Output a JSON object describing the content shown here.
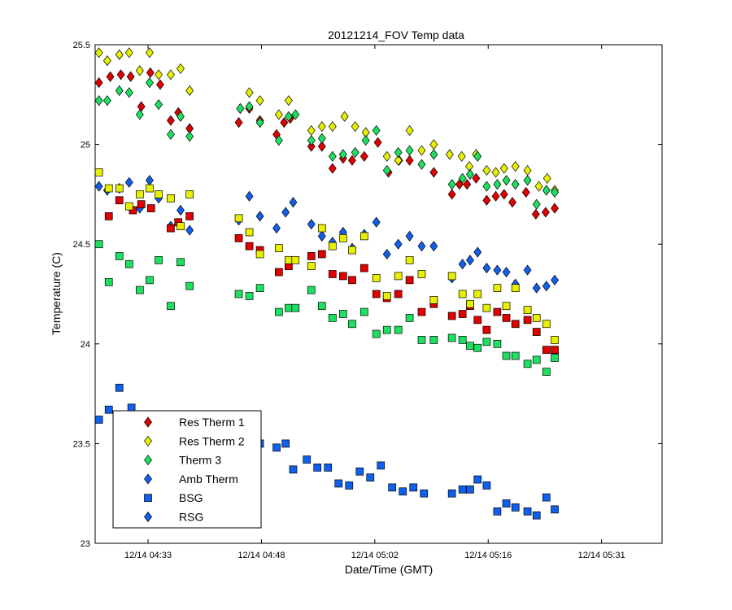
{
  "chart_data": {
    "type": "scatter",
    "title": "20121214_FOV Temp data",
    "xlabel": "Date/Time (GMT)",
    "ylabel": "Temperature (C)",
    "x_unit": "minutes after 12/14 04:25 GMT",
    "xlim": [
      0,
      75
    ],
    "ylim": [
      23,
      25.5
    ],
    "x_ticks": [
      {
        "value": 7,
        "label": "12/14 04:33"
      },
      {
        "value": 22,
        "label": "12/14 04:48"
      },
      {
        "value": 37,
        "label": "12/14 05:02"
      },
      {
        "value": 52,
        "label": "12/14 05:16"
      },
      {
        "value": 67,
        "label": "12/14 05:31"
      }
    ],
    "y_ticks": [
      {
        "value": 23,
        "label": "23"
      },
      {
        "value": 23.5,
        "label": "23.5"
      },
      {
        "value": 24,
        "label": "24"
      },
      {
        "value": 24.5,
        "label": "24.5"
      },
      {
        "value": 25,
        "label": "25"
      },
      {
        "value": 25.5,
        "label": "25.5"
      }
    ],
    "grid": false,
    "legend_position": "bottom-left",
    "legend": [
      {
        "name": "Res Therm 1",
        "marker": "diamond",
        "color": "#e00000"
      },
      {
        "name": "Res Therm 2",
        "marker": "diamond",
        "color": "#e6f000"
      },
      {
        "name": "Therm 3",
        "marker": "diamond",
        "color": "#1ee060"
      },
      {
        "name": "Amb Therm",
        "marker": "diamond",
        "color": "#1060ee"
      },
      {
        "name": "BSG",
        "marker": "square",
        "color": "#1060ee"
      },
      {
        "name": "RSG",
        "marker": "diamond",
        "color": "#1060ee"
      }
    ],
    "series": [
      {
        "name": "Res Therm 1 (upper)",
        "marker": "diamond",
        "color": "#e00000",
        "x": [
          0.5,
          2,
          3.4,
          4.7,
          6.1,
          7.3,
          8.6,
          10,
          11,
          12.5,
          19,
          20.4,
          21.8,
          24,
          25,
          25.8,
          28.6,
          30,
          31.4,
          32.8,
          34,
          35.6,
          37.4,
          38.8,
          40.2,
          41.6,
          44.8,
          47.2,
          48.2,
          49.2,
          50.4,
          51.8,
          53,
          54.1,
          55.2,
          57,
          58.3,
          59.6,
          60.8
        ],
        "y": [
          25.31,
          25.34,
          25.35,
          25.34,
          25.19,
          25.36,
          25.3,
          25.12,
          25.16,
          25.08,
          25.11,
          25.18,
          25.12,
          25.05,
          25.11,
          25.13,
          24.99,
          24.99,
          24.88,
          24.93,
          24.92,
          24.94,
          25.01,
          24.86,
          24.92,
          24.92,
          24.86,
          24.75,
          24.8,
          24.8,
          24.83,
          24.72,
          24.74,
          24.75,
          24.71,
          24.76,
          24.65,
          24.66,
          24.68
        ]
      },
      {
        "name": "Res Therm 2 (upper)",
        "marker": "diamond",
        "color": "#e6f000",
        "x": [
          0.5,
          1.6,
          3.2,
          4.5,
          5.9,
          7.2,
          8.4,
          10,
          11.3,
          12.5,
          19.2,
          20.4,
          21.8,
          24.3,
          25.6,
          28.6,
          30,
          31.4,
          33,
          34.4,
          35.8,
          38.6,
          40.1,
          41.6,
          43.2,
          44.8,
          46.9,
          48.5,
          49.5,
          50.4,
          51.8,
          53,
          54.1,
          55.6,
          57.2,
          58.7,
          59.8,
          60.8
        ],
        "y": [
          25.46,
          25.42,
          25.45,
          25.46,
          25.37,
          25.46,
          25.35,
          25.35,
          25.38,
          25.27,
          25.18,
          25.26,
          25.22,
          25.15,
          25.22,
          25.07,
          25.09,
          25.09,
          25.14,
          25.09,
          25.06,
          24.94,
          24.92,
          25.07,
          24.97,
          25.0,
          24.95,
          24.94,
          24.89,
          24.95,
          24.87,
          24.86,
          24.88,
          24.89,
          24.87,
          24.79,
          24.83,
          24.77
        ]
      },
      {
        "name": "Therm 3 (upper)",
        "marker": "diamond",
        "color": "#1ee060",
        "x": [
          0.5,
          1.6,
          3.2,
          4.5,
          5.9,
          7.2,
          8.4,
          10,
          11.3,
          12.5,
          19.2,
          20.4,
          21.8,
          24.3,
          25.6,
          26.5,
          28.6,
          30,
          31.4,
          32.8,
          34.4,
          35.8,
          37.2,
          38.6,
          40.1,
          41.6,
          43.2,
          44.8,
          47.2,
          48.6,
          49.6,
          50.6,
          51.8,
          53.2,
          54.4,
          55.6,
          57.2,
          58.4,
          59.7,
          60.8
        ],
        "y": [
          25.22,
          25.22,
          25.27,
          25.26,
          25.15,
          25.31,
          25.2,
          25.05,
          25.14,
          25.04,
          25.18,
          25.19,
          25.11,
          25.02,
          25.14,
          25.15,
          25.02,
          25.03,
          24.94,
          24.95,
          24.96,
          25.02,
          25.07,
          24.87,
          24.96,
          24.97,
          24.9,
          24.95,
          24.8,
          24.83,
          24.85,
          24.94,
          24.79,
          24.8,
          24.82,
          24.8,
          24.82,
          24.7,
          24.77,
          24.76
        ]
      },
      {
        "name": "Amb Therm (upper)",
        "marker": "diamond",
        "color": "#1060ee",
        "x": [
          0.5,
          1.6,
          3.2,
          4.5,
          5.9,
          7.2,
          8.4,
          10,
          11.3,
          12.5,
          19,
          20.4,
          21.8,
          24,
          25.2,
          26.2,
          28.6,
          30,
          31.4,
          32.8,
          34,
          35.6,
          37.2,
          38.6,
          40.1,
          41.6,
          43.2,
          44.8,
          47.2,
          48.6,
          49.6,
          50.6,
          51.8,
          53.2,
          54.4,
          55.6,
          57.2,
          58.4,
          59.7,
          60.8
        ],
        "y": [
          24.79,
          24.77,
          24.78,
          24.81,
          24.68,
          24.82,
          24.73,
          24.59,
          24.67,
          24.57,
          24.62,
          24.74,
          24.64,
          24.58,
          24.66,
          24.71,
          24.6,
          24.54,
          24.51,
          24.56,
          24.48,
          24.55,
          24.61,
          24.45,
          24.5,
          24.54,
          24.49,
          24.49,
          24.33,
          24.4,
          24.42,
          24.46,
          24.38,
          24.37,
          24.36,
          24.3,
          24.37,
          24.28,
          24.29,
          24.32
        ]
      },
      {
        "name": "Res Therm 1 (lower)",
        "marker": "square",
        "color": "#e00000",
        "x": [
          1.8,
          3.2,
          5,
          6.1,
          7.4,
          10,
          11,
          12.5,
          19,
          20.4,
          21.8,
          24.3,
          25.6,
          28.6,
          30,
          31.4,
          32.8,
          34,
          35.6,
          37.2,
          38.6,
          40.1,
          41.6,
          43.2,
          44.8,
          47.2,
          48.6,
          49.6,
          50.6,
          51.8,
          53.2,
          54.4,
          55.6,
          57.2,
          58.4,
          59.7,
          60.8
        ],
        "y": [
          24.64,
          24.72,
          24.67,
          24.7,
          24.68,
          24.58,
          24.61,
          24.64,
          24.53,
          24.49,
          24.47,
          24.36,
          24.39,
          24.44,
          24.45,
          24.35,
          24.34,
          24.32,
          24.38,
          24.25,
          24.23,
          24.25,
          24.32,
          24.16,
          24.2,
          24.14,
          24.15,
          24.19,
          24.12,
          24.07,
          24.16,
          24.13,
          24.1,
          24.12,
          24.06,
          23.97,
          23.97
        ]
      },
      {
        "name": "Res Therm 2 (lower)",
        "marker": "square",
        "color": "#e6f000",
        "x": [
          0.5,
          1.8,
          3.2,
          4.5,
          5.9,
          7.2,
          8.4,
          10,
          11.3,
          12.5,
          19,
          20.4,
          21.8,
          24.3,
          25.6,
          26.5,
          28.6,
          30,
          31.4,
          32.8,
          34,
          35.6,
          37.2,
          38.6,
          40.1,
          41.6,
          43.2,
          44.8,
          47.2,
          48.6,
          49.6,
          50.6,
          51.8,
          53.2,
          54.4,
          55.6,
          57.2,
          58.4,
          59.7,
          60.8
        ],
        "y": [
          24.86,
          24.78,
          24.78,
          24.69,
          24.75,
          24.78,
          24.75,
          24.73,
          24.59,
          24.75,
          24.63,
          24.56,
          24.45,
          24.48,
          24.42,
          24.42,
          24.39,
          24.58,
          24.49,
          24.53,
          24.47,
          24.54,
          24.33,
          24.24,
          24.34,
          24.42,
          24.35,
          24.22,
          24.34,
          24.25,
          24.2,
          24.25,
          24.18,
          24.28,
          24.19,
          24.28,
          24.17,
          24.13,
          24.1,
          24.02
        ]
      },
      {
        "name": "Therm 3 (lower)",
        "marker": "square",
        "color": "#1ee060",
        "x": [
          0.5,
          1.8,
          3.2,
          4.5,
          5.9,
          7.2,
          8.4,
          10,
          11.3,
          12.5,
          19,
          20.4,
          21.8,
          24.3,
          25.6,
          26.5,
          28.6,
          30,
          31.4,
          32.8,
          34,
          35.6,
          37.2,
          38.6,
          40.1,
          41.6,
          43.2,
          44.8,
          47.2,
          48.6,
          49.6,
          50.6,
          51.8,
          53.2,
          54.4,
          55.6,
          57.2,
          58.4,
          59.7,
          60.8
        ],
        "y": [
          24.5,
          24.31,
          24.44,
          24.4,
          24.27,
          24.32,
          24.42,
          24.19,
          24.41,
          24.29,
          24.25,
          24.24,
          24.28,
          24.16,
          24.18,
          24.18,
          24.27,
          24.19,
          24.13,
          24.15,
          24.1,
          24.16,
          24.05,
          24.07,
          24.07,
          24.13,
          24.02,
          24.02,
          24.03,
          24.02,
          23.99,
          23.98,
          24.01,
          24.0,
          23.94,
          23.94,
          23.9,
          23.92,
          23.86,
          23.93
        ]
      },
      {
        "name": "BSG",
        "marker": "square",
        "color": "#1060ee",
        "x": [
          0.5,
          1.8,
          3.2,
          4.8,
          21.8,
          24,
          25.2,
          26.2,
          28,
          29.4,
          30.8,
          32.2,
          33.6,
          35,
          36.4,
          37.8,
          39.3,
          40.7,
          42.1,
          43.5,
          47.2,
          48.6,
          49.6,
          50.6,
          51.8,
          53.2,
          54.4,
          55.6,
          57.2,
          58.4,
          59.7,
          60.8
        ],
        "y": [
          23.62,
          23.67,
          23.78,
          23.68,
          23.5,
          23.48,
          23.5,
          23.37,
          23.42,
          23.38,
          23.38,
          23.3,
          23.29,
          23.36,
          23.33,
          23.39,
          23.28,
          23.26,
          23.28,
          23.25,
          23.25,
          23.27,
          23.27,
          23.32,
          23.29,
          23.16,
          23.2,
          23.18,
          23.16,
          23.14,
          23.23,
          23.17
        ]
      }
    ]
  }
}
